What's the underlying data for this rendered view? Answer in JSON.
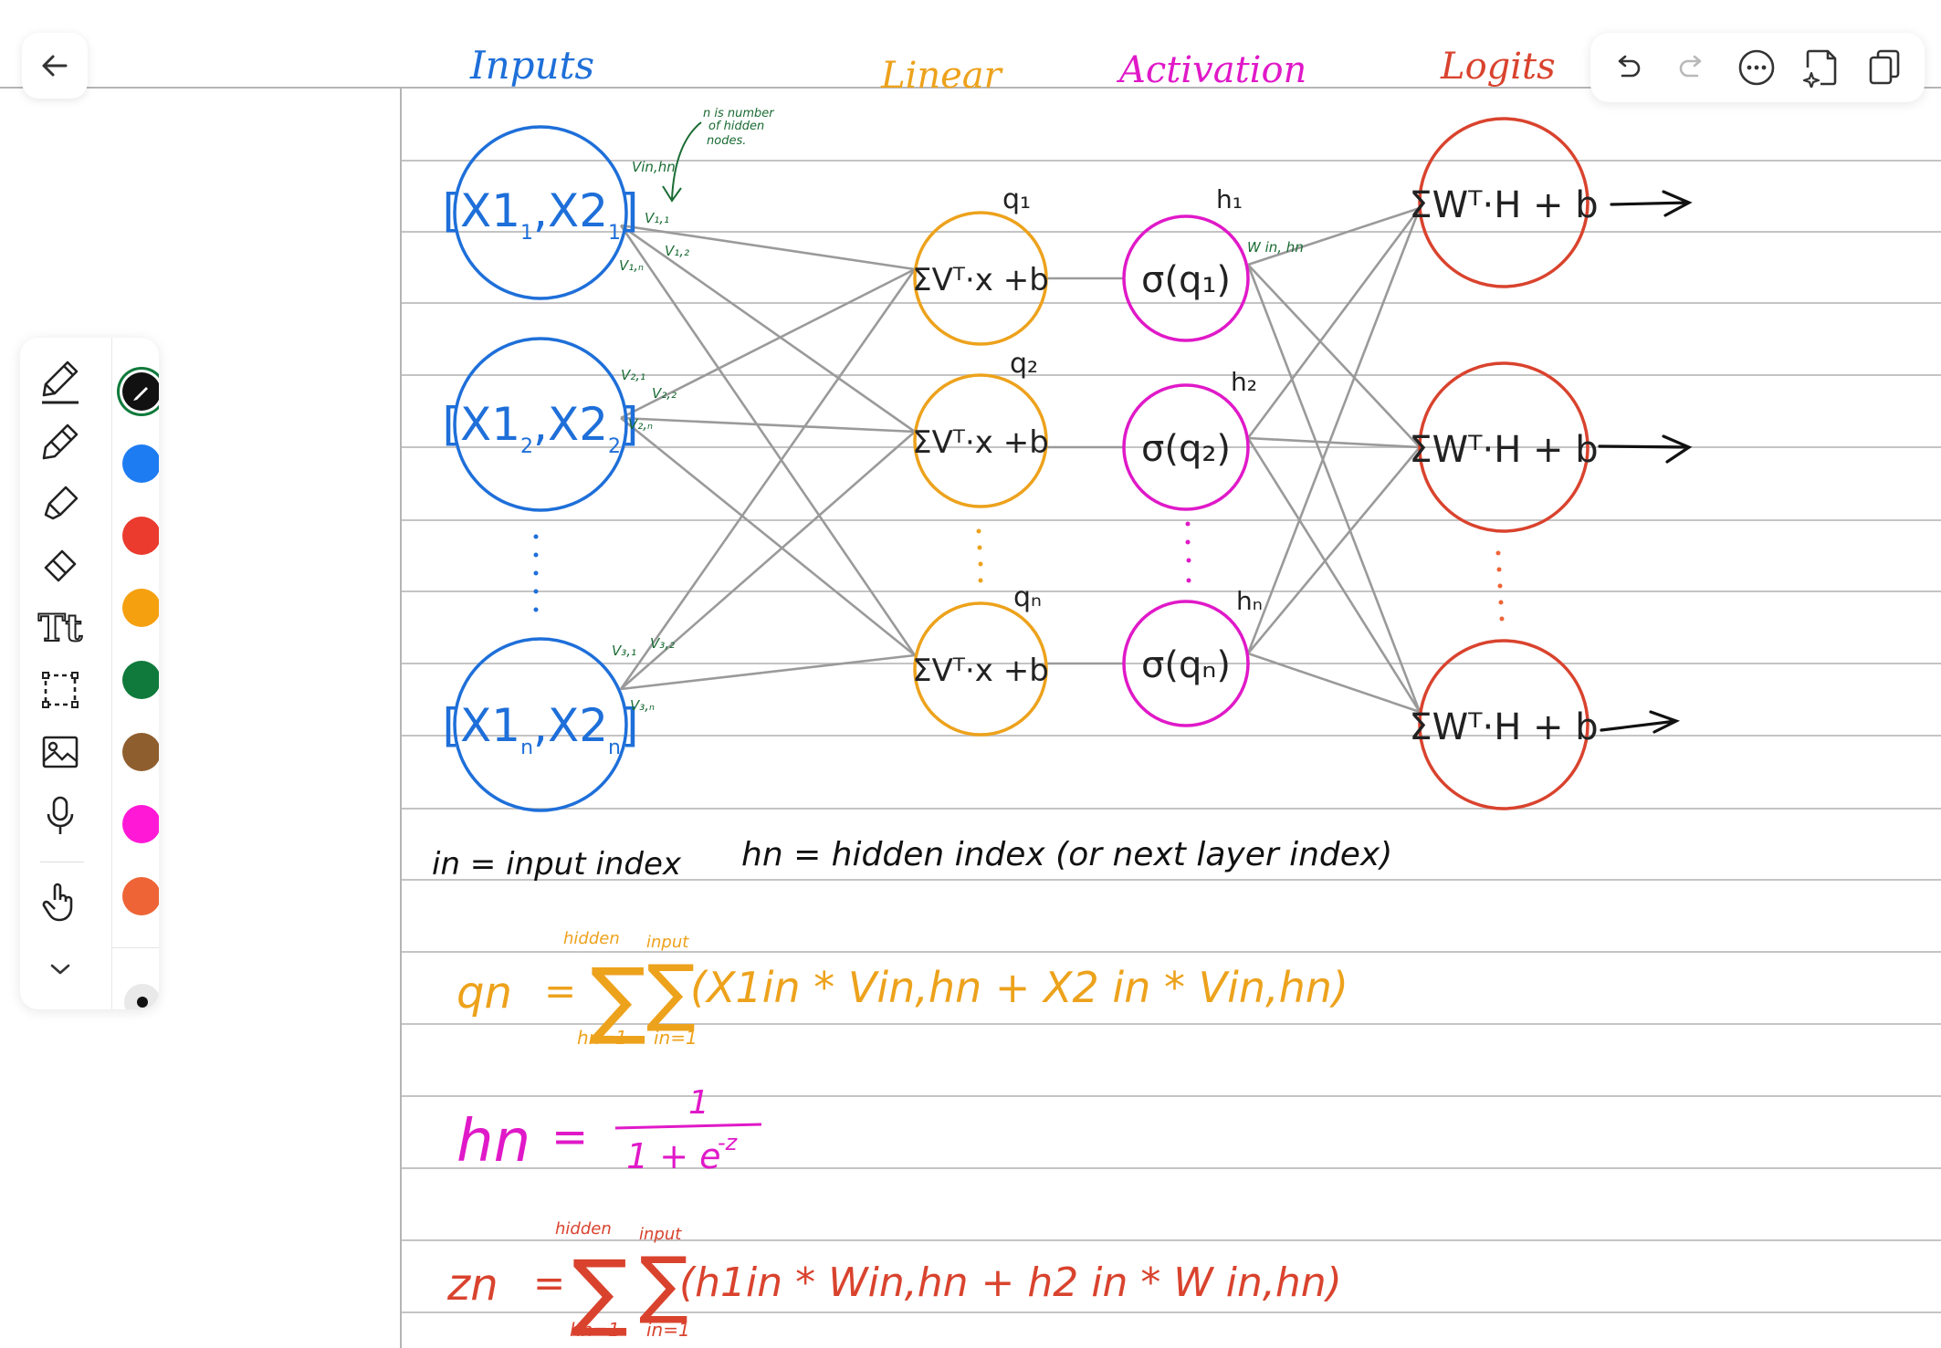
{
  "toolbar": {
    "back_icon": "arrow-left-icon",
    "icons": [
      "undo-icon",
      "redo-icon",
      "more-icon",
      "ai-sparkle-page-icon",
      "copy-pages-icon"
    ]
  },
  "tools": [
    {
      "name": "pen-tool",
      "icon": "pen-icon",
      "active": true
    },
    {
      "name": "pencil-tool",
      "icon": "pencil-icon"
    },
    {
      "name": "highlighter-tool",
      "icon": "highlighter-icon"
    },
    {
      "name": "eraser-tool",
      "icon": "eraser-icon"
    },
    {
      "name": "text-tool",
      "icon": "text-icon",
      "label": "Tt"
    },
    {
      "name": "lasso-tool",
      "icon": "lasso-select-icon"
    },
    {
      "name": "image-tool",
      "icon": "image-icon"
    },
    {
      "name": "mic-tool",
      "icon": "microphone-icon"
    },
    {
      "name": "hand-tool",
      "icon": "hand-pointer-icon"
    },
    {
      "name": "collapse-tool",
      "icon": "chevron-down-icon"
    }
  ],
  "colors": {
    "palette": [
      "#111111",
      "#1e7cf2",
      "#ea3b2e",
      "#f5a00f",
      "#0f7a3b",
      "#8f5e2e",
      "#ff19d6",
      "#ee6436"
    ],
    "blue": "#1e6fd9",
    "orange": "#eda21c",
    "magenta": "#e019c8",
    "red": "#d9432e",
    "green": "#1a6b33",
    "ink": "#222222",
    "line": "#9a9a9a"
  },
  "note": {
    "headers": [
      "Inputs",
      "Linear",
      "Activation",
      "Logits"
    ],
    "input_nodes": [
      {
        "a": "X1",
        "a_sub": "1",
        "b": "X2",
        "b_sub": "1"
      },
      {
        "a": "X1",
        "a_sub": "2",
        "b": "X2",
        "b_sub": "2"
      },
      {
        "a": "X1",
        "a_sub": "n",
        "b": "X2",
        "b_sub": "n"
      }
    ],
    "linear_text": "ΣVᵀ·x +b",
    "linear_labels": [
      "q₁",
      "q₂",
      "qₙ"
    ],
    "activation_texts": [
      "σ(q₁)",
      "σ(q₂)",
      "σ(qₙ)"
    ],
    "activation_labels": [
      "h₁",
      "h₂",
      "hₙ"
    ],
    "logit_text": "ΣWᵀ·H + b",
    "weights": {
      "vin": "Vin,hn",
      "v11": "V₁,₁",
      "v12": "V₁,₂",
      "v1n": "V₁,ₙ",
      "v21": "V₂,₁",
      "v22": "V₂,₂",
      "v2n": "V₂,ₙ",
      "v31": "V₃,₁",
      "v32": "V₃,₂",
      "v3n": "V₃,ₙ",
      "win": "W in, hn"
    },
    "annotation": [
      "n is number",
      "of hidden",
      "nodes."
    ],
    "legend_in": "in = input index",
    "legend_hn": "hn = hidden index (or next layer index)",
    "eq_q": {
      "lhs": "qn",
      "eq": "=",
      "top1": "hidden",
      "bottom1": "hn=1",
      "top2": "input",
      "bottom2": "in=1",
      "body": "(X1in * Vin,hn + X2 in * Vin,hn)"
    },
    "eq_h": {
      "lhs": "hn",
      "eq": "=",
      "num": "1",
      "den": "1 + e",
      "exp": "-z"
    },
    "eq_z": {
      "lhs": "zn",
      "eq": "=",
      "top1": "hidden",
      "bottom1": "hn=1",
      "top2": "input",
      "bottom2": "in=1",
      "body": "(h1in * Win,hn + h2 in * W in,hn)"
    }
  }
}
